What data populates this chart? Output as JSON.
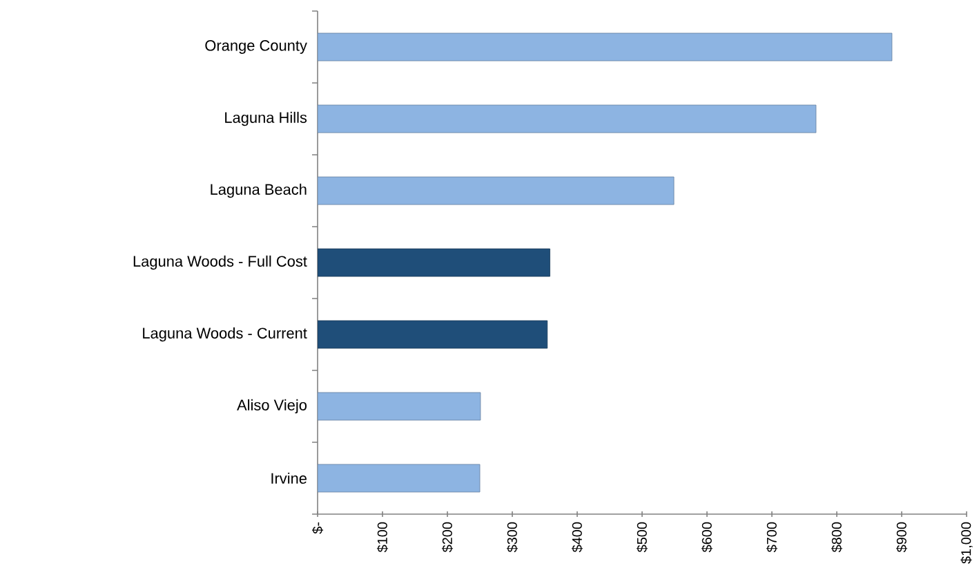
{
  "chart_data": {
    "type": "bar",
    "orientation": "horizontal",
    "categories": [
      "Orange County",
      "Laguna Hills",
      "Laguna Beach",
      "Laguna Woods - Full Cost",
      "Laguna Woods - Current",
      "Aliso Viejo",
      "Irvine"
    ],
    "values": [
      885,
      768,
      549,
      358,
      354,
      251,
      250
    ],
    "colors": [
      "#8db4e2",
      "#8db4e2",
      "#8db4e2",
      "#1f4e79",
      "#1f4e79",
      "#8db4e2",
      "#8db4e2"
    ],
    "xlim": [
      0,
      1000
    ],
    "xticks": [
      {
        "value": 0,
        "label": "$-"
      },
      {
        "value": 100,
        "label": "$100"
      },
      {
        "value": 200,
        "label": "$200"
      },
      {
        "value": 300,
        "label": "$300"
      },
      {
        "value": 400,
        "label": "$400"
      },
      {
        "value": 500,
        "label": "$500"
      },
      {
        "value": 600,
        "label": "$600"
      },
      {
        "value": 700,
        "label": "$700"
      },
      {
        "value": 800,
        "label": "$800"
      },
      {
        "value": 900,
        "label": "$900"
      },
      {
        "value": 1000,
        "label": "$1,000"
      }
    ],
    "grid": false
  }
}
